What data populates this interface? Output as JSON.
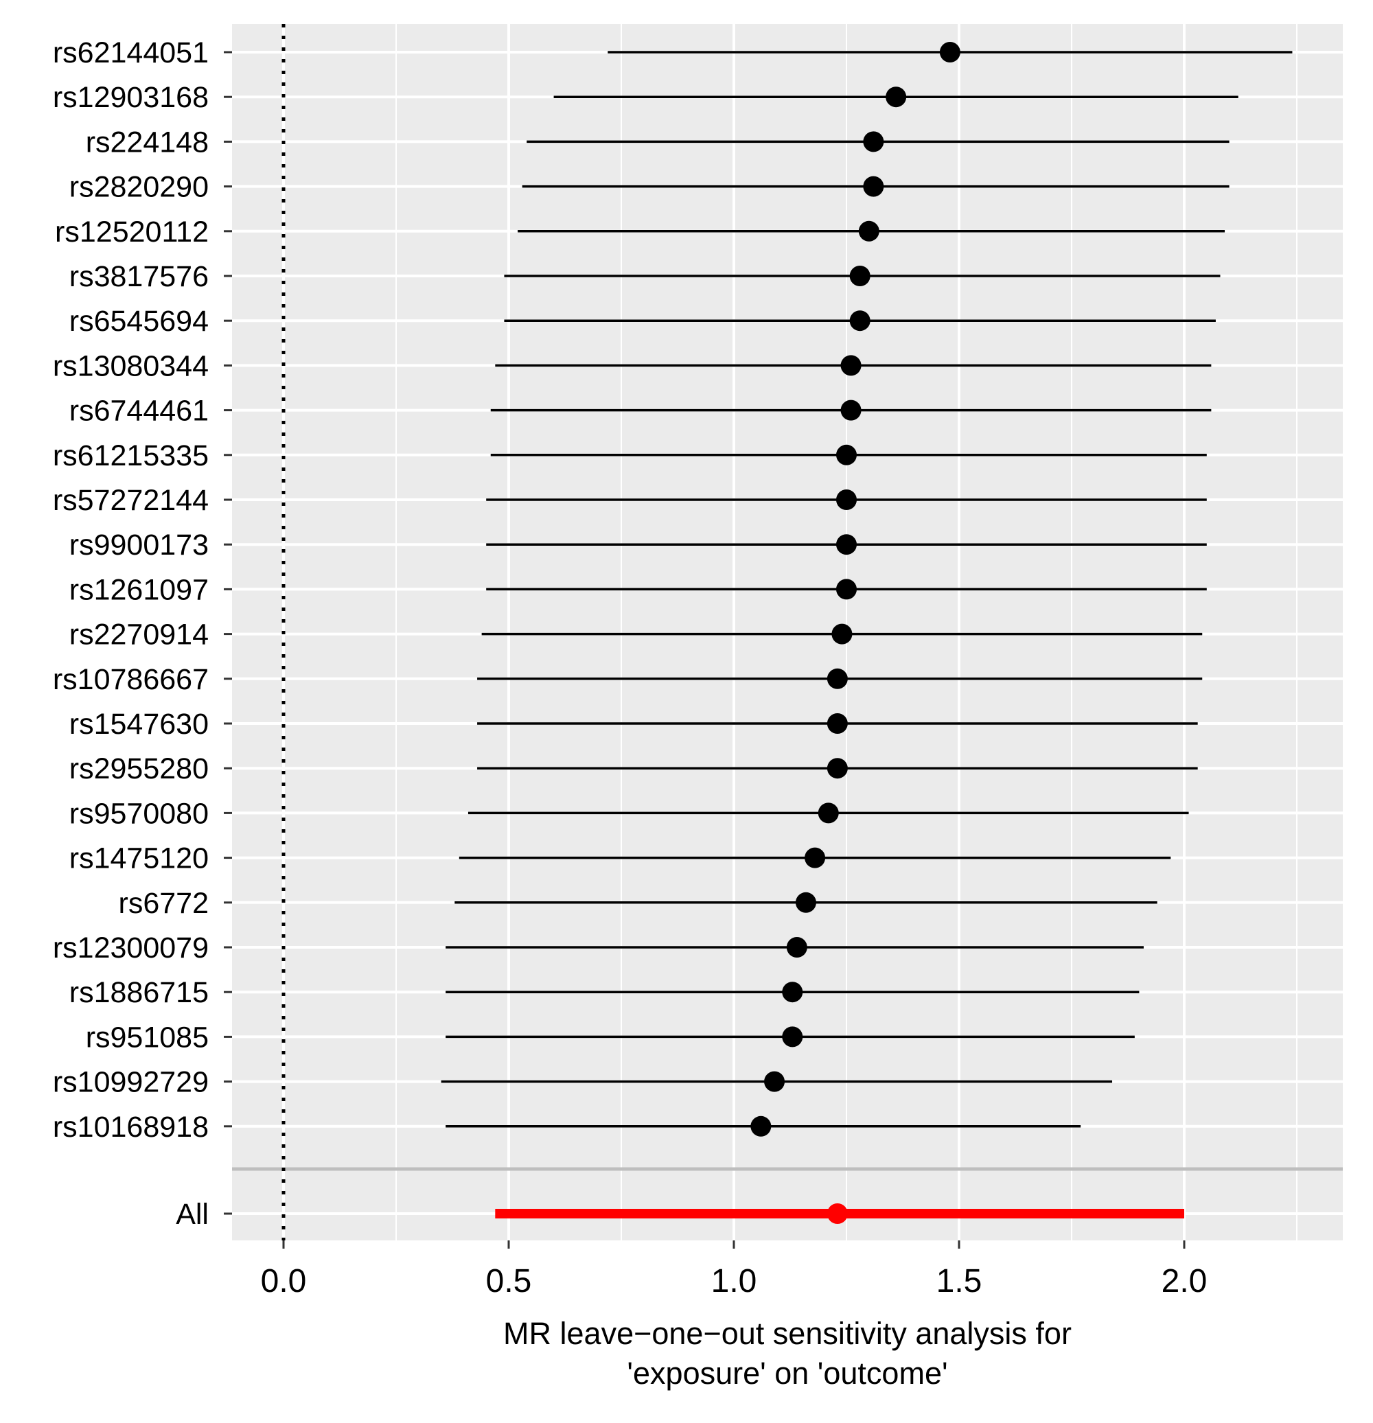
{
  "chart_data": {
    "type": "scatter",
    "subtype": "forest-plot",
    "title": "",
    "xlabel_lines": [
      "MR leave−one−out sensitivity analysis for",
      "'exposure' on 'outcome'"
    ],
    "ylabel": "",
    "xlim": [
      -0.11,
      2.35
    ],
    "x_ticks": [
      0.0,
      0.5,
      1.0,
      1.5,
      2.0
    ],
    "x_tick_labels": [
      "0.0",
      "0.5",
      "1.0",
      "1.5",
      "2.0"
    ],
    "reference_line_x": 0.0,
    "grid": true,
    "background": "#EBEBEB",
    "point_color": "#000000",
    "summary_color": "#FF0000",
    "snps": [
      {
        "label": "rs62144051",
        "b": 1.48,
        "lo": 0.72,
        "hi": 2.24
      },
      {
        "label": "rs12903168",
        "b": 1.36,
        "lo": 0.6,
        "hi": 2.12
      },
      {
        "label": "rs224148",
        "b": 1.31,
        "lo": 0.54,
        "hi": 2.1
      },
      {
        "label": "rs2820290",
        "b": 1.31,
        "lo": 0.53,
        "hi": 2.1
      },
      {
        "label": "rs12520112",
        "b": 1.3,
        "lo": 0.52,
        "hi": 2.09
      },
      {
        "label": "rs3817576",
        "b": 1.28,
        "lo": 0.49,
        "hi": 2.08
      },
      {
        "label": "rs6545694",
        "b": 1.28,
        "lo": 0.49,
        "hi": 2.07
      },
      {
        "label": "rs13080344",
        "b": 1.26,
        "lo": 0.47,
        "hi": 2.06
      },
      {
        "label": "rs6744461",
        "b": 1.26,
        "lo": 0.46,
        "hi": 2.06
      },
      {
        "label": "rs61215335",
        "b": 1.25,
        "lo": 0.46,
        "hi": 2.05
      },
      {
        "label": "rs57272144",
        "b": 1.25,
        "lo": 0.45,
        "hi": 2.05
      },
      {
        "label": "rs9900173",
        "b": 1.25,
        "lo": 0.45,
        "hi": 2.05
      },
      {
        "label": "rs1261097",
        "b": 1.25,
        "lo": 0.45,
        "hi": 2.05
      },
      {
        "label": "rs2270914",
        "b": 1.24,
        "lo": 0.44,
        "hi": 2.04
      },
      {
        "label": "rs10786667",
        "b": 1.23,
        "lo": 0.43,
        "hi": 2.04
      },
      {
        "label": "rs1547630",
        "b": 1.23,
        "lo": 0.43,
        "hi": 2.03
      },
      {
        "label": "rs2955280",
        "b": 1.23,
        "lo": 0.43,
        "hi": 2.03
      },
      {
        "label": "rs9570080",
        "b": 1.21,
        "lo": 0.41,
        "hi": 2.01
      },
      {
        "label": "rs1475120",
        "b": 1.18,
        "lo": 0.39,
        "hi": 1.97
      },
      {
        "label": "rs6772",
        "b": 1.16,
        "lo": 0.38,
        "hi": 1.94
      },
      {
        "label": "rs12300079",
        "b": 1.14,
        "lo": 0.36,
        "hi": 1.91
      },
      {
        "label": "rs1886715",
        "b": 1.13,
        "lo": 0.36,
        "hi": 1.9
      },
      {
        "label": "rs951085",
        "b": 1.13,
        "lo": 0.36,
        "hi": 1.89
      },
      {
        "label": "rs10992729",
        "b": 1.09,
        "lo": 0.35,
        "hi": 1.84
      },
      {
        "label": "rs10168918",
        "b": 1.06,
        "lo": 0.36,
        "hi": 1.77
      }
    ],
    "summary": {
      "label": "All",
      "b": 1.23,
      "lo": 0.47,
      "hi": 2.0
    }
  }
}
